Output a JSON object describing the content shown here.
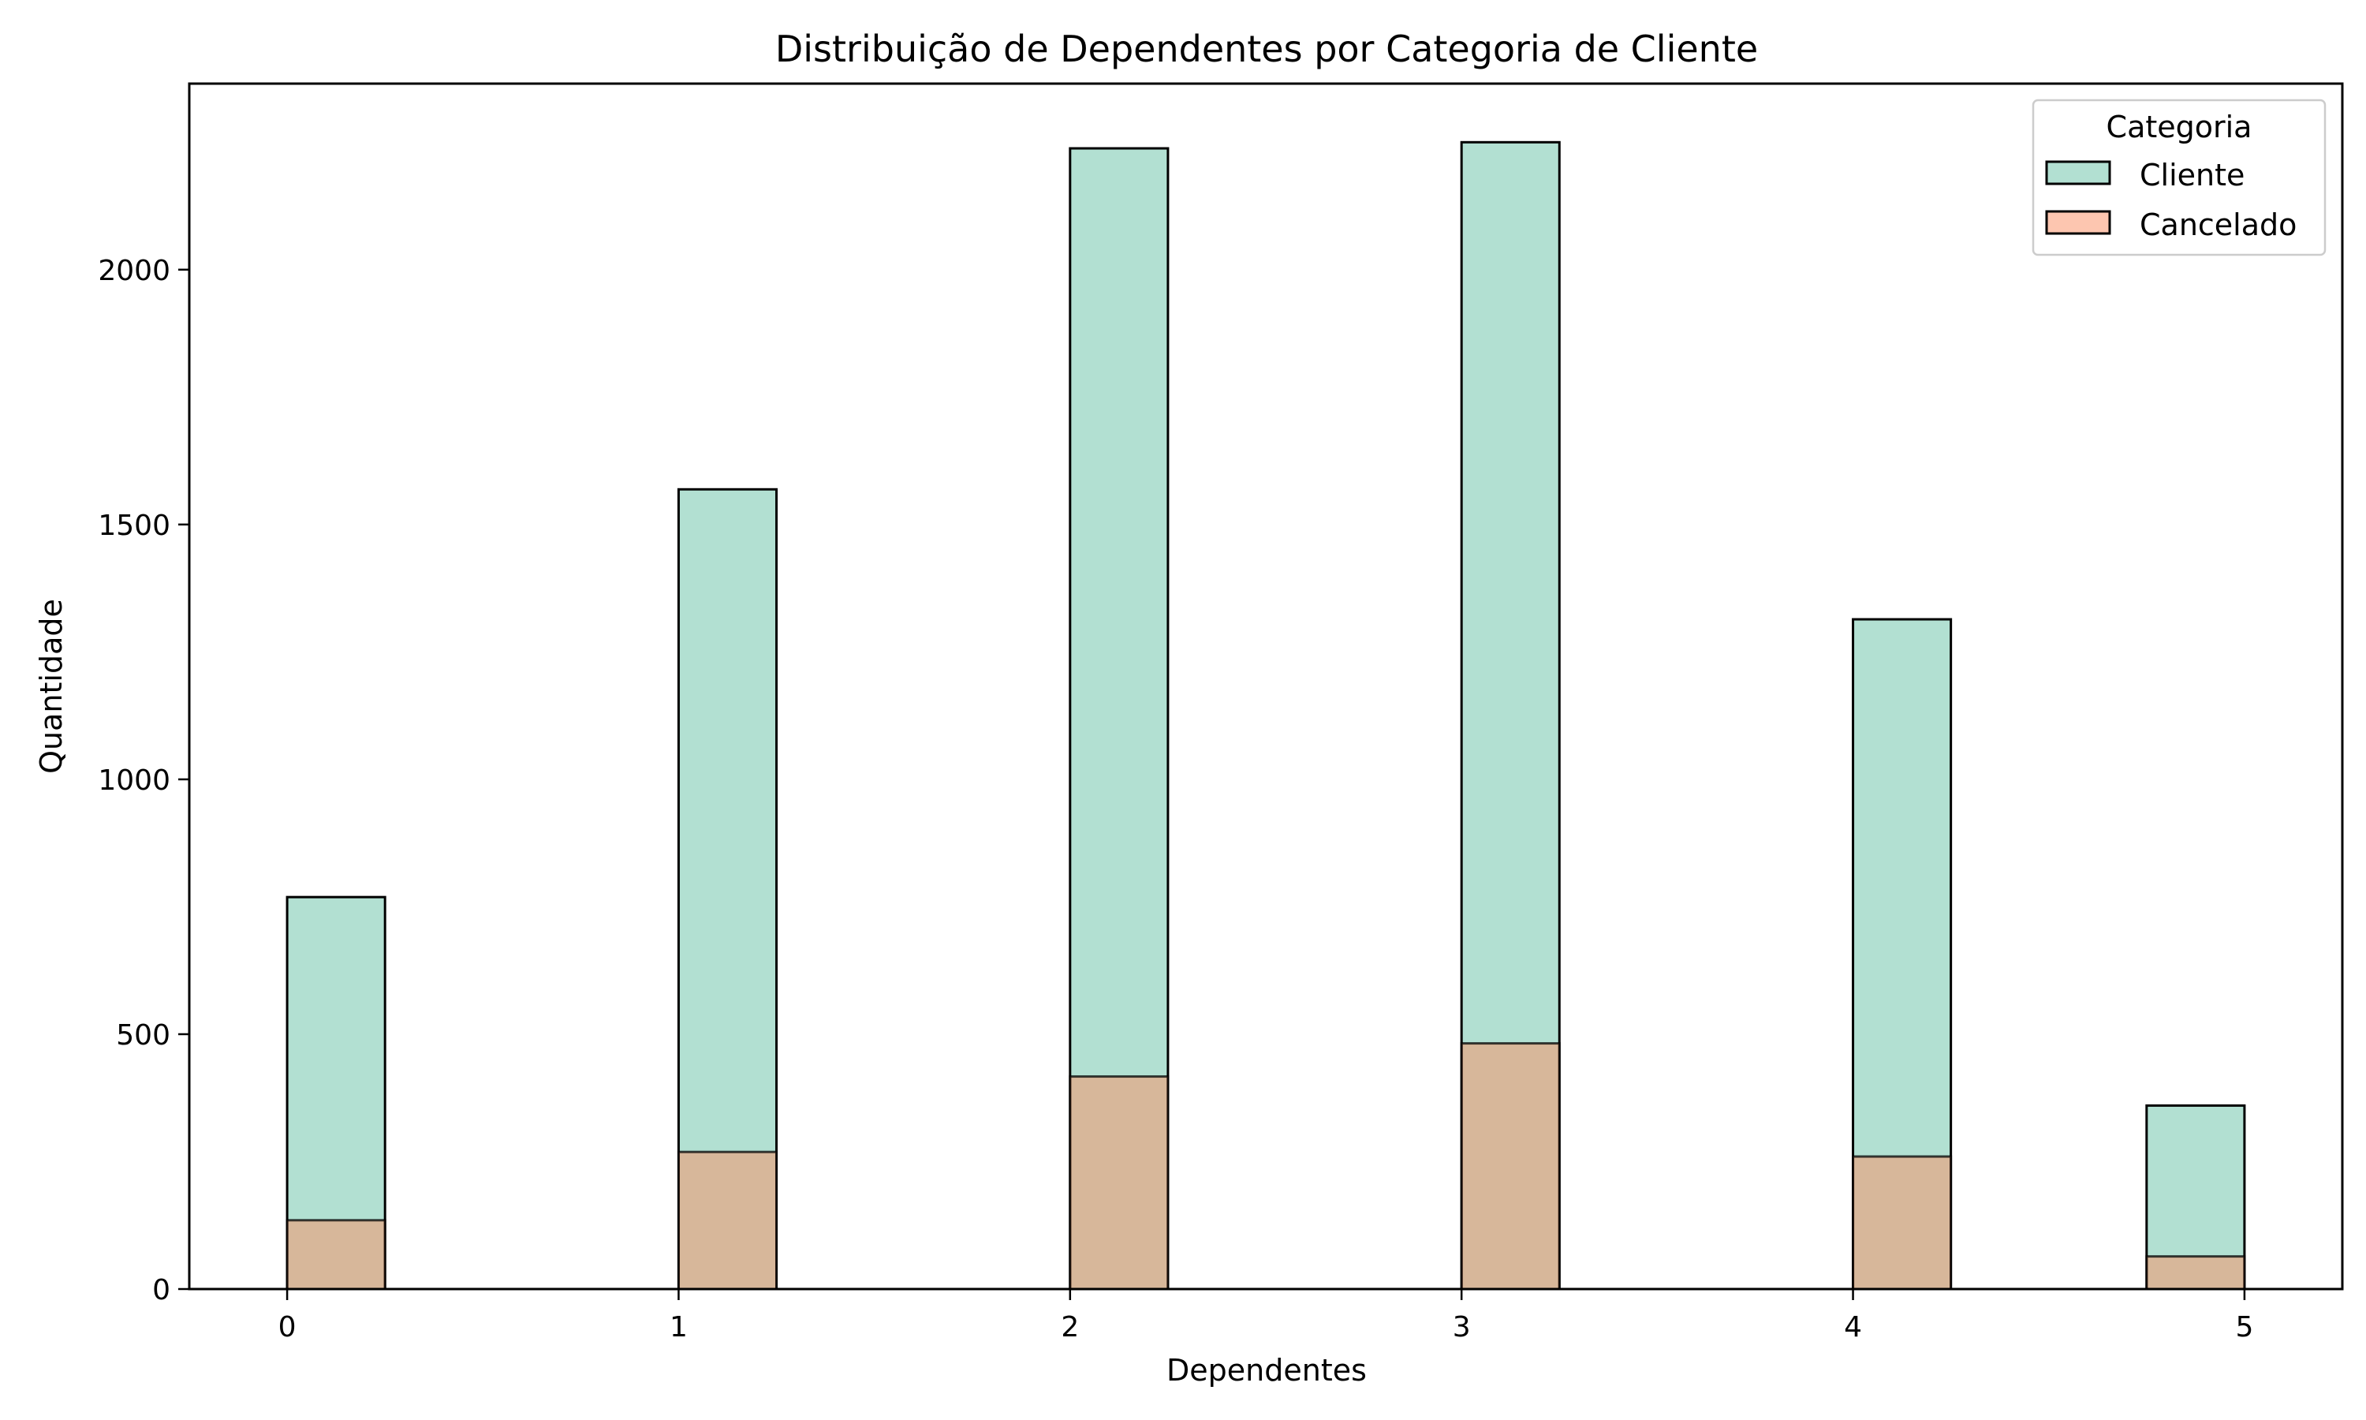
{
  "chart_data": {
    "type": "bar",
    "title": "Distribuição de Dependentes por Categoria de Cliente",
    "xlabel": "Dependentes",
    "ylabel": "Quantidade",
    "x_ticks": [
      "0",
      "1",
      "2",
      "3",
      "4",
      "5"
    ],
    "y_ticks": [
      "0",
      "500",
      "1000",
      "1500",
      "2000"
    ],
    "xlim": [
      -0.25,
      5.25
    ],
    "ylim": [
      0,
      2365
    ],
    "bin_width": 0.25,
    "grid": false,
    "legend": {
      "title": "Categoria",
      "position": "top-right"
    },
    "series": [
      {
        "name": "Cliente",
        "color": "#66c2a5",
        "values": [
          {
            "x": 0,
            "y": 769
          },
          {
            "x": 1,
            "y": 1569
          },
          {
            "x": 2,
            "y": 2238
          },
          {
            "x": 3,
            "y": 2250
          },
          {
            "x": 4,
            "y": 1314
          },
          {
            "x": 4.75,
            "y": 360
          }
        ]
      },
      {
        "name": "Cancelado",
        "color": "#fc8d62",
        "values": [
          {
            "x": 0,
            "y": 135
          },
          {
            "x": 1,
            "y": 269
          },
          {
            "x": 2,
            "y": 417
          },
          {
            "x": 3,
            "y": 482
          },
          {
            "x": 4,
            "y": 260
          },
          {
            "x": 4.75,
            "y": 64
          }
        ]
      }
    ]
  }
}
